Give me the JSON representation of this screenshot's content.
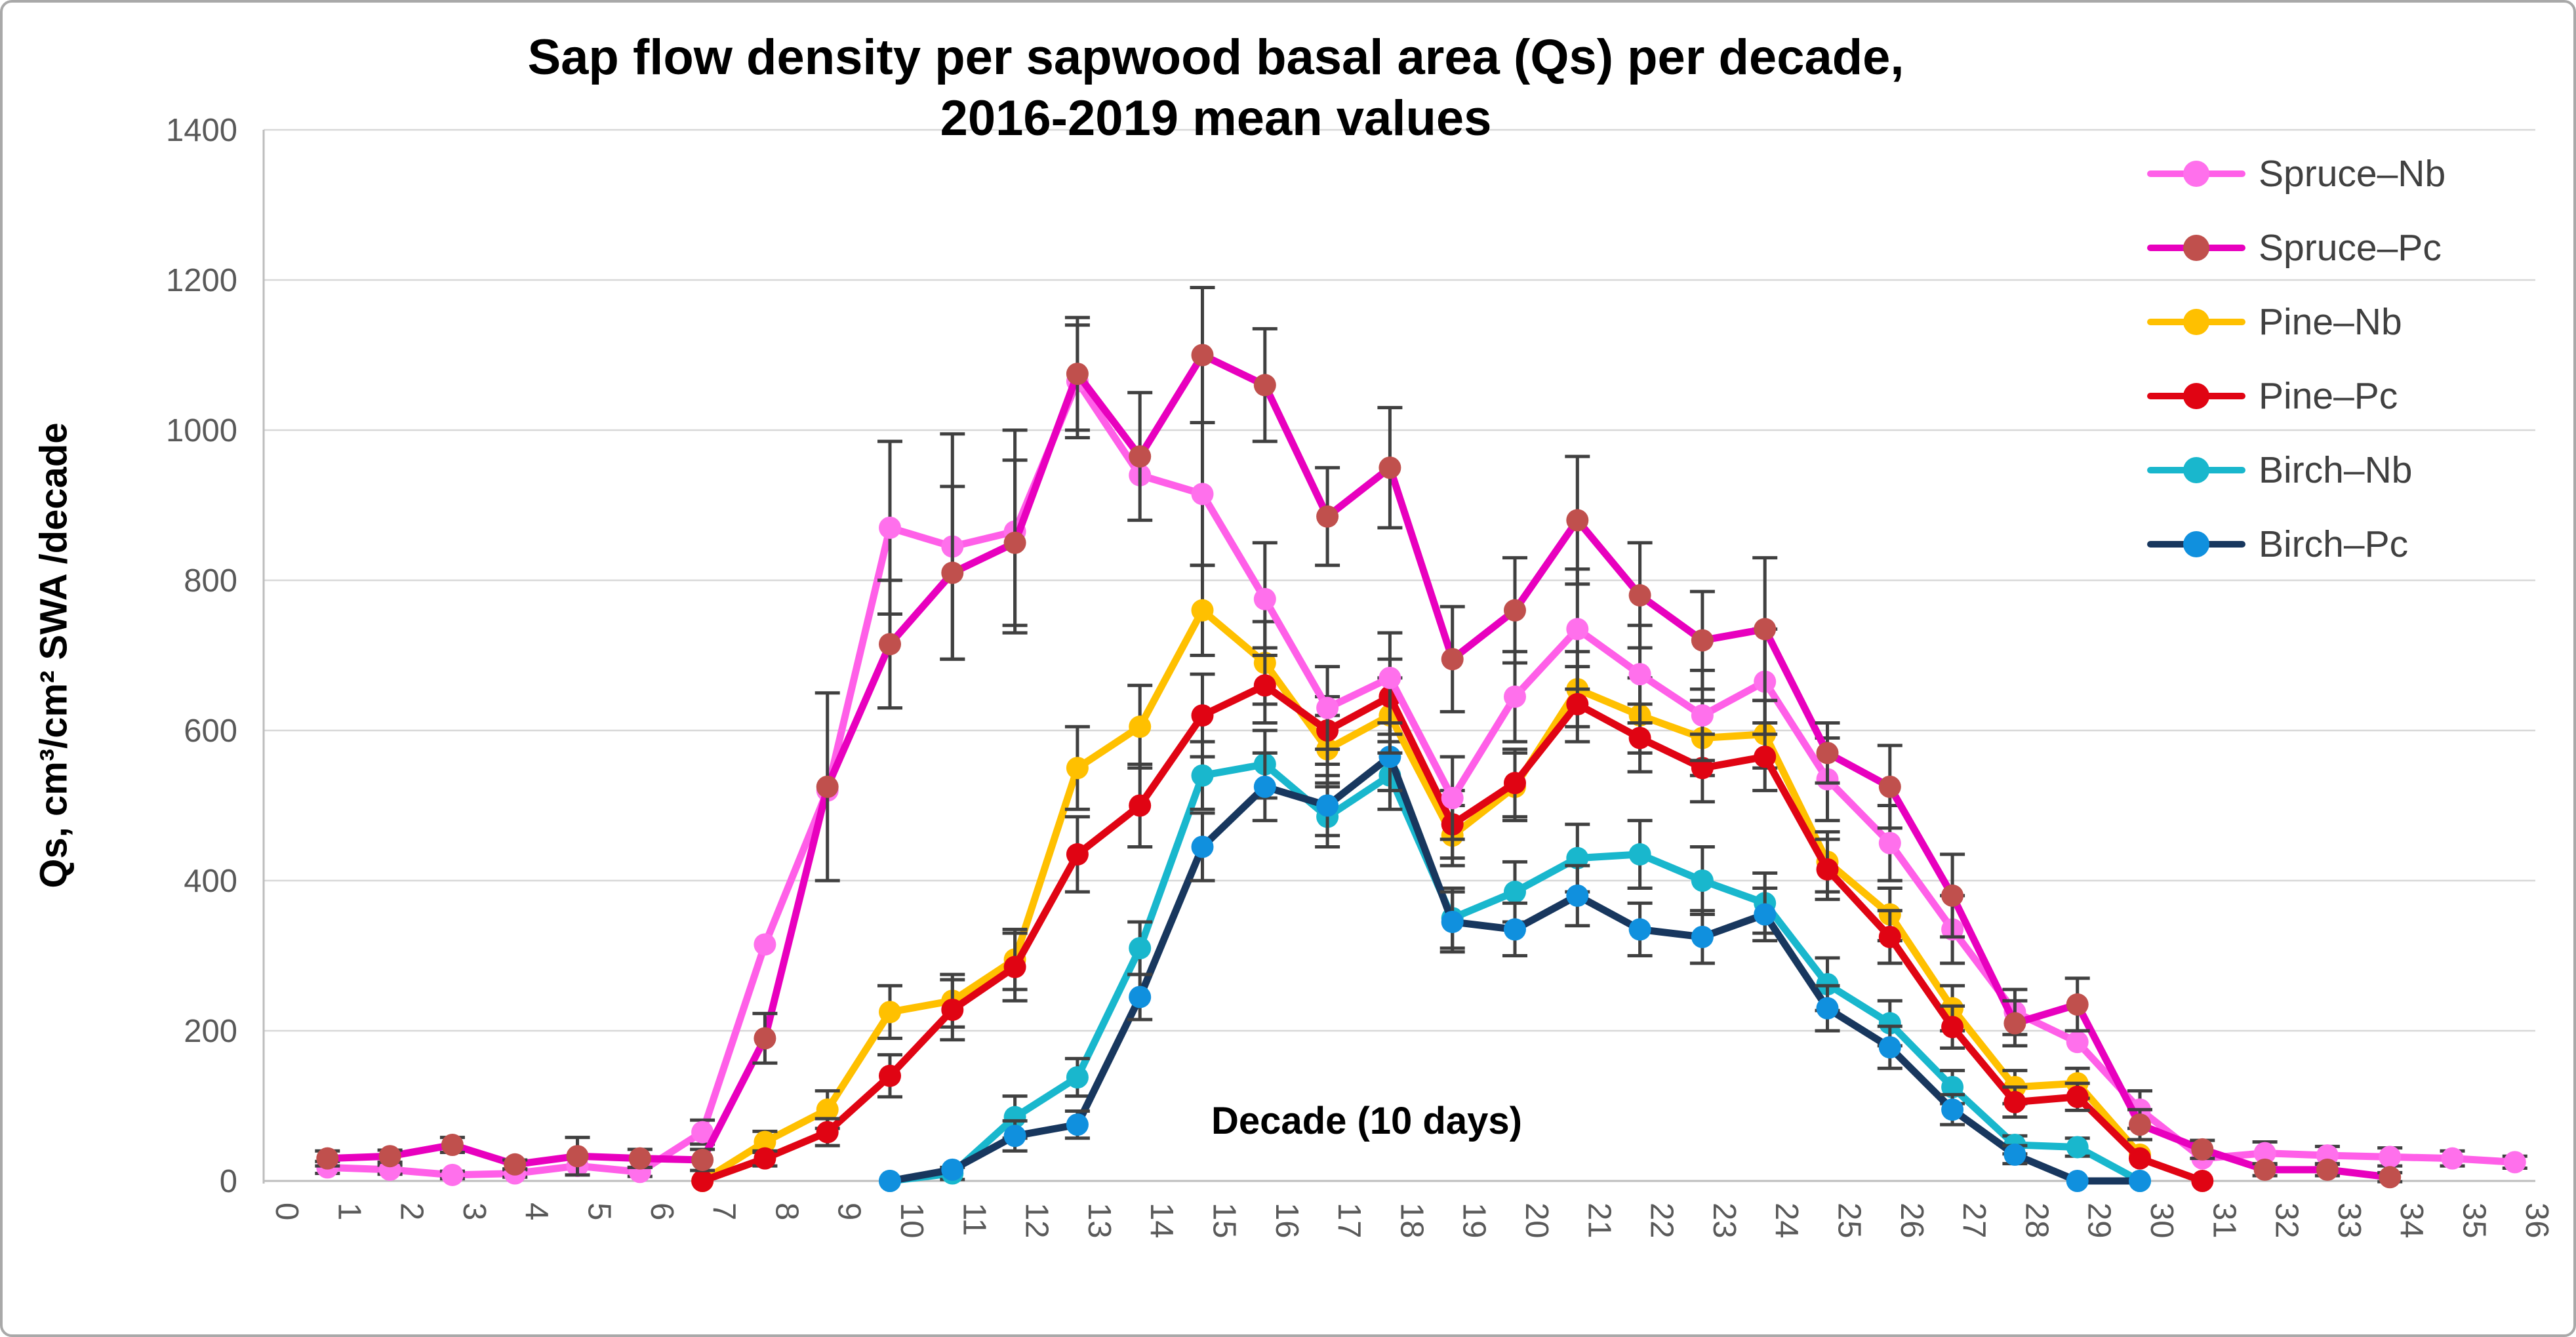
{
  "figure": {
    "title_line1": "Sap flow density per sapwood basal area (Qs) per decade,",
    "title_line2": "2016-2019 mean values",
    "x_axis_title": "Decade (10 days)",
    "y_axis_title": "Qs, cm³/cm² SWA /decade"
  },
  "style_colors": {
    "gridline": "#d8d8d8",
    "axis_line": "#bdbdbd",
    "error_bar": "#404040",
    "tick_text": "#595959",
    "legend_text": "#404040"
  },
  "chart_data": {
    "type": "line",
    "title": "Sap flow density per sapwood basal area (Qs) per decade, 2016-2019 mean values",
    "xlabel": "Decade (10 days)",
    "ylabel": "Qs, cm3/cm2 SWA /decade",
    "ylim": [
      0,
      1400
    ],
    "ytick_step": 200,
    "y_tick_labels": [
      "0",
      "200",
      "400",
      "600",
      "800",
      "1000",
      "1200",
      "1400"
    ],
    "x_labels": [
      "0",
      "1",
      "2",
      "3",
      "4",
      "5",
      "6",
      "7",
      "8",
      "9",
      "10",
      "11",
      "12",
      "13",
      "14",
      "15",
      "16",
      "17",
      "18",
      "19",
      "20",
      "21",
      "22",
      "23",
      "24",
      "25",
      "26",
      "27",
      "28",
      "29",
      "30",
      "31",
      "32",
      "33",
      "34",
      "35",
      "36"
    ],
    "grid": "horizontal",
    "legend_position": "inside-top-right",
    "draw_order": [
      4,
      5,
      2,
      3,
      0,
      1
    ],
    "series": [
      {
        "id": "spruce-nb",
        "name": "Spruce–Nb",
        "line_color": "#ff5fe8",
        "marker_color": "#ff70ec",
        "values": [
          null,
          18,
          15,
          8,
          10,
          20,
          12,
          65,
          315,
          520,
          870,
          845,
          865,
          1065,
          940,
          915,
          775,
          630,
          670,
          510,
          645,
          735,
          675,
          620,
          665,
          535,
          450,
          335,
          225,
          185,
          95,
          30,
          37,
          34,
          32,
          30,
          25
        ],
        "err": [
          null,
          8,
          6,
          5,
          5,
          12,
          6,
          16,
          null,
          null,
          115,
          150,
          135,
          75,
          null,
          95,
          75,
          55,
          60,
          55,
          60,
          80,
          65,
          60,
          70,
          55,
          50,
          45,
          30,
          null,
          25,
          null,
          15,
          12,
          12,
          10,
          8
        ]
      },
      {
        "id": "spruce-pc",
        "name": "Spruce–Pc",
        "line_color": "#e800be",
        "marker_color": "#c0504d",
        "values": [
          null,
          30,
          33,
          48,
          22,
          33,
          30,
          28,
          190,
          525,
          715,
          810,
          850,
          1075,
          965,
          1100,
          1060,
          885,
          950,
          695,
          760,
          880,
          780,
          720,
          735,
          570,
          525,
          380,
          210,
          235,
          75,
          42,
          15,
          15,
          5,
          null,
          null
        ],
        "err": [
          null,
          10,
          8,
          10,
          6,
          25,
          12,
          14,
          33,
          125,
          85,
          115,
          110,
          75,
          85,
          90,
          75,
          65,
          80,
          70,
          70,
          85,
          70,
          65,
          95,
          40,
          55,
          55,
          30,
          35,
          20,
          12,
          8,
          8,
          6,
          null,
          null
        ]
      },
      {
        "id": "pine-nb",
        "name": "Pine–Nb",
        "line_color": "#ffc000",
        "marker_color": "#ffc000",
        "values": [
          null,
          null,
          null,
          null,
          null,
          null,
          null,
          0,
          52,
          95,
          225,
          240,
          295,
          550,
          605,
          760,
          690,
          575,
          620,
          460,
          525,
          655,
          620,
          590,
          595,
          425,
          355,
          230,
          125,
          130,
          35,
          null,
          null,
          null,
          null,
          null,
          null
        ],
        "err": [
          null,
          null,
          null,
          null,
          null,
          null,
          null,
          null,
          14,
          25,
          35,
          35,
          40,
          55,
          55,
          60,
          55,
          45,
          50,
          40,
          45,
          50,
          50,
          50,
          45,
          40,
          35,
          30,
          22,
          20,
          null,
          null,
          null,
          null,
          null,
          null,
          null
        ]
      },
      {
        "id": "pine-pc",
        "name": "Pine–Pc",
        "line_color": "#e00413",
        "marker_color": "#e00413",
        "values": [
          null,
          null,
          null,
          null,
          null,
          null,
          null,
          0,
          30,
          65,
          140,
          228,
          285,
          435,
          500,
          620,
          660,
          600,
          645,
          475,
          530,
          635,
          590,
          550,
          565,
          415,
          325,
          205,
          105,
          112,
          30,
          0,
          null,
          null,
          null,
          null,
          null
        ],
        "err": [
          null,
          null,
          null,
          null,
          null,
          null,
          null,
          null,
          10,
          18,
          28,
          40,
          45,
          50,
          55,
          55,
          50,
          45,
          50,
          45,
          45,
          50,
          45,
          45,
          45,
          40,
          35,
          28,
          20,
          18,
          null,
          null,
          null,
          null,
          null,
          null,
          null
        ]
      },
      {
        "id": "birch-nb",
        "name": "Birch–Nb",
        "line_color": "#19b7cd",
        "marker_color": "#19b7cd",
        "values": [
          null,
          null,
          null,
          null,
          null,
          null,
          null,
          null,
          null,
          null,
          0,
          10,
          85,
          138,
          310,
          540,
          555,
          485,
          540,
          350,
          385,
          430,
          435,
          400,
          370,
          262,
          210,
          125,
          48,
          45,
          0,
          null,
          null,
          null,
          null,
          null,
          null
        ],
        "err": [
          null,
          null,
          null,
          null,
          null,
          null,
          null,
          null,
          null,
          null,
          null,
          8,
          28,
          25,
          35,
          45,
          45,
          40,
          45,
          40,
          40,
          45,
          45,
          45,
          40,
          35,
          30,
          22,
          12,
          12,
          null,
          null,
          null,
          null,
          null,
          null,
          null
        ]
      },
      {
        "id": "birch-pc",
        "name": "Birch–Pc",
        "line_color": "#18375e",
        "marker_color": "#1090de",
        "values": [
          null,
          null,
          null,
          null,
          null,
          null,
          null,
          null,
          null,
          null,
          0,
          15,
          60,
          75,
          245,
          445,
          525,
          500,
          565,
          345,
          335,
          380,
          335,
          325,
          355,
          230,
          178,
          95,
          35,
          0,
          0,
          null,
          null,
          null,
          null,
          null,
          null
        ],
        "err": [
          null,
          null,
          null,
          null,
          null,
          null,
          null,
          null,
          null,
          null,
          null,
          null,
          20,
          18,
          30,
          45,
          45,
          40,
          45,
          40,
          35,
          40,
          35,
          35,
          35,
          30,
          28,
          20,
          12,
          null,
          null,
          null,
          null,
          null,
          null,
          null,
          null
        ]
      }
    ]
  }
}
